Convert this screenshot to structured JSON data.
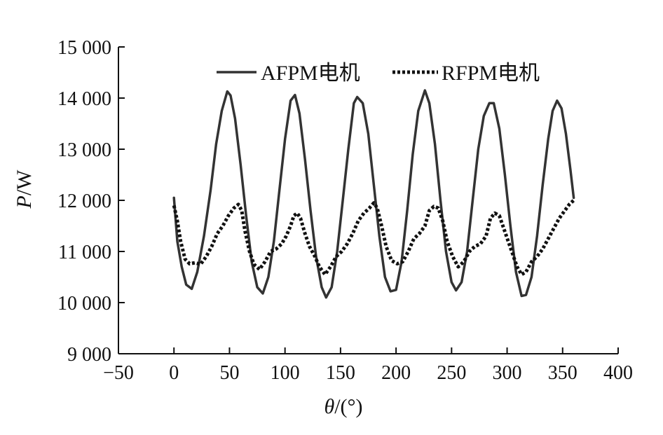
{
  "chart_data": {
    "type": "line",
    "xlabel_italic": "θ",
    "xlabel_rest": "/(°)",
    "ylabel_italic": "P",
    "ylabel_rest": "/W",
    "xlim": [
      -50,
      400
    ],
    "ylim": [
      9000,
      15000
    ],
    "x_ticks": [
      -50,
      0,
      50,
      100,
      150,
      200,
      250,
      300,
      350,
      400
    ],
    "x_tick_labels": [
      "−50",
      "0",
      "50",
      "100",
      "150",
      "200",
      "250",
      "300",
      "350",
      "400"
    ],
    "y_ticks": [
      9000,
      10000,
      11000,
      12000,
      13000,
      14000,
      15000
    ],
    "y_tick_labels": [
      "9 000",
      "10 000",
      "11 000",
      "12 000",
      "13 000",
      "14 000",
      "15 000"
    ],
    "grid": false,
    "legend_position": "top",
    "series": [
      {
        "name": "AFPM电机",
        "style": "solid",
        "color": "#333333",
        "points": [
          [
            0,
            12050
          ],
          [
            3,
            11200
          ],
          [
            7,
            10700
          ],
          [
            11,
            10350
          ],
          [
            16,
            10270
          ],
          [
            21,
            10600
          ],
          [
            27,
            11300
          ],
          [
            33,
            12200
          ],
          [
            38,
            13100
          ],
          [
            43,
            13750
          ],
          [
            48,
            14130
          ],
          [
            51,
            14050
          ],
          [
            55,
            13600
          ],
          [
            60,
            12700
          ],
          [
            65,
            11700
          ],
          [
            70,
            10800
          ],
          [
            75,
            10300
          ],
          [
            80,
            10180
          ],
          [
            85,
            10500
          ],
          [
            90,
            11200
          ],
          [
            95,
            12200
          ],
          [
            100,
            13200
          ],
          [
            105,
            13950
          ],
          [
            109,
            14060
          ],
          [
            113,
            13700
          ],
          [
            118,
            12800
          ],
          [
            123,
            11800
          ],
          [
            128,
            10900
          ],
          [
            133,
            10300
          ],
          [
            137,
            10100
          ],
          [
            142,
            10300
          ],
          [
            147,
            11000
          ],
          [
            152,
            12000
          ],
          [
            157,
            13000
          ],
          [
            162,
            13900
          ],
          [
            165,
            14020
          ],
          [
            170,
            13900
          ],
          [
            175,
            13300
          ],
          [
            180,
            12300
          ],
          [
            185,
            11300
          ],
          [
            190,
            10500
          ],
          [
            195,
            10220
          ],
          [
            200,
            10250
          ],
          [
            205,
            10800
          ],
          [
            210,
            11800
          ],
          [
            215,
            12900
          ],
          [
            220,
            13750
          ],
          [
            226,
            14150
          ],
          [
            230,
            13900
          ],
          [
            235,
            13100
          ],
          [
            240,
            12000
          ],
          [
            245,
            11000
          ],
          [
            250,
            10400
          ],
          [
            254,
            10240
          ],
          [
            259,
            10400
          ],
          [
            264,
            11000
          ],
          [
            269,
            12000
          ],
          [
            274,
            13000
          ],
          [
            279,
            13650
          ],
          [
            284,
            13900
          ],
          [
            288,
            13900
          ],
          [
            293,
            13400
          ],
          [
            298,
            12500
          ],
          [
            303,
            11500
          ],
          [
            308,
            10600
          ],
          [
            313,
            10130
          ],
          [
            317,
            10150
          ],
          [
            322,
            10500
          ],
          [
            327,
            11300
          ],
          [
            332,
            12300
          ],
          [
            337,
            13200
          ],
          [
            341,
            13750
          ],
          [
            345,
            13950
          ],
          [
            349,
            13800
          ],
          [
            353,
            13300
          ],
          [
            357,
            12600
          ],
          [
            360,
            12050
          ]
        ]
      },
      {
        "name": "RFPM电机",
        "style": "dotted",
        "color": "#111111",
        "points": [
          [
            0,
            11900
          ],
          [
            3,
            11600
          ],
          [
            6,
            11200
          ],
          [
            10,
            10850
          ],
          [
            14,
            10760
          ],
          [
            19,
            10780
          ],
          [
            24,
            10750
          ],
          [
            29,
            10900
          ],
          [
            34,
            11100
          ],
          [
            39,
            11350
          ],
          [
            44,
            11500
          ],
          [
            49,
            11700
          ],
          [
            54,
            11850
          ],
          [
            58,
            11920
          ],
          [
            61,
            11800
          ],
          [
            64,
            11400
          ],
          [
            68,
            11000
          ],
          [
            72,
            10750
          ],
          [
            77,
            10650
          ],
          [
            82,
            10800
          ],
          [
            87,
            11000
          ],
          [
            92,
            11050
          ],
          [
            97,
            11150
          ],
          [
            101,
            11300
          ],
          [
            105,
            11500
          ],
          [
            108,
            11700
          ],
          [
            111,
            11750
          ],
          [
            114,
            11650
          ],
          [
            118,
            11350
          ],
          [
            122,
            11100
          ],
          [
            127,
            10900
          ],
          [
            131,
            10700
          ],
          [
            136,
            10550
          ],
          [
            141,
            10700
          ],
          [
            146,
            10900
          ],
          [
            151,
            11000
          ],
          [
            156,
            11150
          ],
          [
            161,
            11350
          ],
          [
            166,
            11600
          ],
          [
            171,
            11750
          ],
          [
            176,
            11850
          ],
          [
            180,
            11950
          ],
          [
            183,
            11850
          ],
          [
            187,
            11500
          ],
          [
            191,
            11100
          ],
          [
            196,
            10820
          ],
          [
            201,
            10760
          ],
          [
            206,
            10800
          ],
          [
            211,
            11000
          ],
          [
            216,
            11250
          ],
          [
            221,
            11350
          ],
          [
            226,
            11500
          ],
          [
            230,
            11800
          ],
          [
            234,
            11880
          ],
          [
            238,
            11850
          ],
          [
            242,
            11600
          ],
          [
            246,
            11200
          ],
          [
            251,
            10900
          ],
          [
            256,
            10700
          ],
          [
            261,
            10800
          ],
          [
            266,
            11000
          ],
          [
            271,
            11100
          ],
          [
            276,
            11150
          ],
          [
            281,
            11300
          ],
          [
            285,
            11650
          ],
          [
            289,
            11750
          ],
          [
            293,
            11700
          ],
          [
            297,
            11450
          ],
          [
            301,
            11200
          ],
          [
            305,
            10950
          ],
          [
            309,
            10700
          ],
          [
            313,
            10550
          ],
          [
            317,
            10600
          ],
          [
            322,
            10800
          ],
          [
            327,
            10900
          ],
          [
            332,
            11050
          ],
          [
            337,
            11250
          ],
          [
            342,
            11450
          ],
          [
            347,
            11650
          ],
          [
            352,
            11800
          ],
          [
            356,
            11920
          ],
          [
            360,
            12000
          ]
        ]
      }
    ]
  }
}
